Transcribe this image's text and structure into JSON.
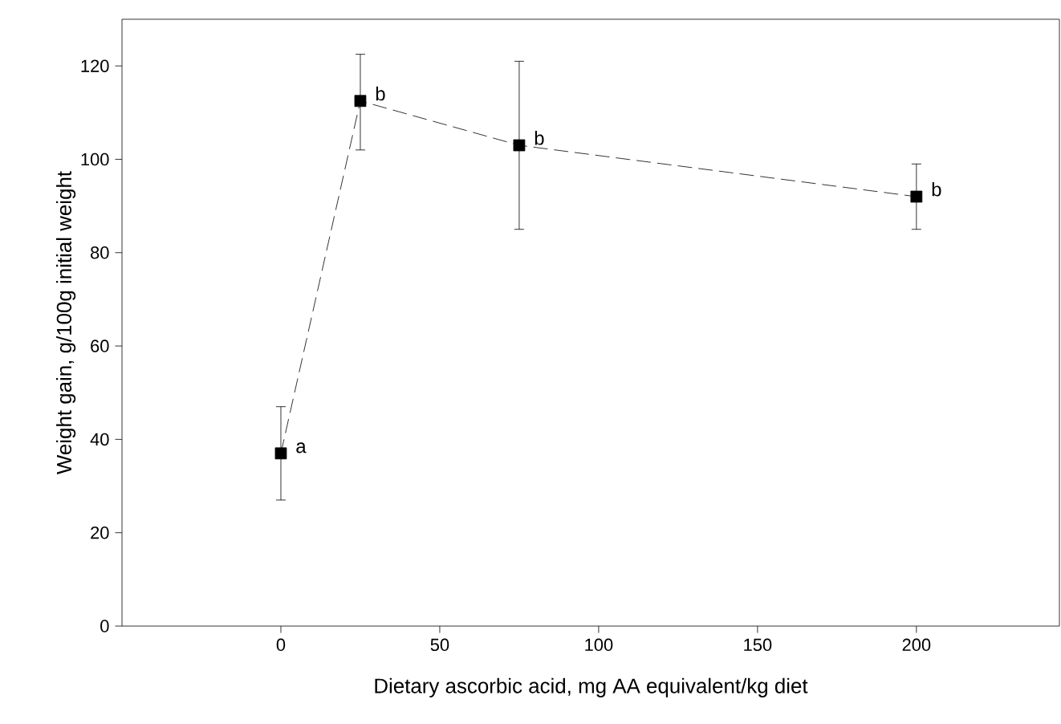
{
  "chart_data": {
    "type": "line",
    "xlabel": "Dietary ascorbic acid, mg AA equivalent/kg diet",
    "ylabel": "Weight gain, g/100g initial weight",
    "x": [
      0,
      25,
      75,
      200
    ],
    "series": [
      {
        "color": "#000000",
        "values": [
          37,
          112.5,
          103,
          92
        ],
        "errors": [
          [
            27,
            47
          ],
          [
            102,
            122.5
          ],
          [
            85,
            121
          ],
          [
            85,
            99
          ]
        ]
      }
    ],
    "xlim": [
      -50,
      245
    ],
    "ylim": [
      0,
      130
    ],
    "xticks": [
      0,
      50,
      100,
      150,
      200
    ],
    "yticks": [
      0,
      20,
      40,
      60,
      80,
      100,
      120
    ],
    "marker": "square",
    "line_style": "dashed",
    "annotations": [
      {
        "text": "a",
        "x": 0,
        "y": 37
      },
      {
        "text": "b",
        "x": 25,
        "y": 112.5
      },
      {
        "text": "b",
        "x": 75,
        "y": 103
      },
      {
        "text": "b",
        "x": 200,
        "y": 92
      }
    ]
  }
}
